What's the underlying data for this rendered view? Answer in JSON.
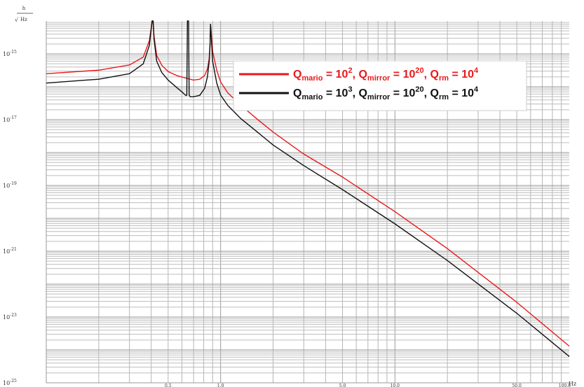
{
  "chart_data": {
    "type": "line",
    "xscale": "log",
    "yscale": "log",
    "xlim": [
      0.1,
      100
    ],
    "ylim": [
      1e-25,
      1e-14
    ],
    "grid": true,
    "xlabel": "Hz",
    "ylabel_numerator": "h",
    "ylabel_denominator": "Hz",
    "x_tick_labels": [
      {
        "value": 0.5,
        "label": "0.5"
      },
      {
        "value": 1.0,
        "label": "1.0"
      },
      {
        "value": 5.0,
        "label": "5.0"
      },
      {
        "value": 10.0,
        "label": "10.0"
      },
      {
        "value": 50.0,
        "label": "50.0"
      },
      {
        "value": 100.0,
        "label": "100.0"
      }
    ],
    "y_tick_labels": [
      {
        "value": 1e-15,
        "label": "10",
        "exp": "-15"
      },
      {
        "value": 1e-17,
        "label": "10",
        "exp": "-17"
      },
      {
        "value": 1e-19,
        "label": "10",
        "exp": "-19"
      },
      {
        "value": 1e-21,
        "label": "10",
        "exp": "-21"
      },
      {
        "value": 1e-23,
        "label": "10",
        "exp": "-23"
      },
      {
        "value": 1e-25,
        "label": "10",
        "exp": "-25"
      }
    ],
    "legend_position": "top-right",
    "series": [
      {
        "legend": {
          "parts": [
            {
              "t": "Q"
            },
            {
              "t": "mario",
              "k": "sub"
            },
            {
              "t": " = 10"
            },
            {
              "t": "2",
              "k": "sup"
            },
            {
              "t": ", Q"
            },
            {
              "t": "mirror",
              "k": "sub"
            },
            {
              "t": " = 10"
            },
            {
              "t": "20",
              "k": "sup"
            },
            {
              "t": ", Q"
            },
            {
              "t": "rm",
              "k": "sub"
            },
            {
              "t": " = 10"
            },
            {
              "t": "4",
              "k": "sup"
            }
          ]
        },
        "color": "#e8191b",
        "x": [
          0.1,
          0.2,
          0.3,
          0.36,
          0.39,
          0.405,
          0.41,
          0.415,
          0.43,
          0.46,
          0.5,
          0.56,
          0.64,
          0.7,
          0.76,
          0.81,
          0.84,
          0.86,
          0.87,
          0.875,
          0.88,
          0.9,
          0.95,
          1.0,
          1.1,
          1.3,
          1.6,
          2.0,
          3.0,
          5.0,
          10.0,
          20.0,
          50.0,
          100.0
        ],
        "y": [
          2.5e-16,
          3.2e-16,
          4.6e-16,
          8e-16,
          2.5e-15,
          1e-14,
          1e-14,
          3.5e-15,
          9e-16,
          4.5e-16,
          2.9e-16,
          2.2e-16,
          1.8e-16,
          1.6e-16,
          1.7e-16,
          2.2e-16,
          3.5e-16,
          7e-16,
          2e-15,
          8e-15,
          6e-15,
          1.2e-15,
          3.2e-16,
          1.4e-16,
          6.5e-17,
          2.8e-17,
          1.1e-17,
          4.2e-18,
          9e-19,
          1.8e-19,
          1.6e-20,
          1.2e-21,
          2.8e-23,
          1.3e-24
        ]
      },
      {
        "legend": {
          "parts": [
            {
              "t": "Q"
            },
            {
              "t": "mario",
              "k": "sub"
            },
            {
              "t": " = 10"
            },
            {
              "t": "3",
              "k": "sup"
            },
            {
              "t": ", Q"
            },
            {
              "t": "mirror",
              "k": "sub"
            },
            {
              "t": " = 10"
            },
            {
              "t": "20",
              "k": "sup"
            },
            {
              "t": ", Q"
            },
            {
              "t": "rm",
              "k": "sub"
            },
            {
              "t": " = 10"
            },
            {
              "t": "4",
              "k": "sup"
            }
          ]
        },
        "color": "#111111",
        "x": [
          0.1,
          0.2,
          0.3,
          0.36,
          0.39,
          0.405,
          0.41,
          0.415,
          0.43,
          0.46,
          0.5,
          0.56,
          0.6,
          0.63,
          0.64,
          0.645,
          0.65,
          0.655,
          0.66,
          0.67,
          0.7,
          0.76,
          0.81,
          0.84,
          0.86,
          0.87,
          0.875,
          0.88,
          0.9,
          0.95,
          1.0,
          1.1,
          1.3,
          1.6,
          2.0,
          3.0,
          5.0,
          10.0,
          20.0,
          50.0,
          100.0
        ],
        "y": [
          1.3e-16,
          1.7e-16,
          2.5e-16,
          5e-16,
          1.8e-15,
          1e-14,
          1e-14,
          2.8e-15,
          6e-16,
          2.7e-16,
          1.6e-16,
          9.5e-17,
          7e-17,
          5.5e-17,
          5.5e-17,
          1e-14,
          1e-14,
          1e-14,
          5.5e-17,
          5e-17,
          5e-17,
          5.5e-17,
          9e-17,
          2e-16,
          6e-16,
          2e-15,
          8e-15,
          5e-15,
          6e-16,
          1.3e-16,
          5.6e-17,
          2.7e-17,
          1.1e-17,
          4.5e-18,
          1.7e-18,
          4e-19,
          7.5e-20,
          6.8e-21,
          5.2e-22,
          1.3e-23,
          6.3e-25
        ]
      }
    ]
  }
}
